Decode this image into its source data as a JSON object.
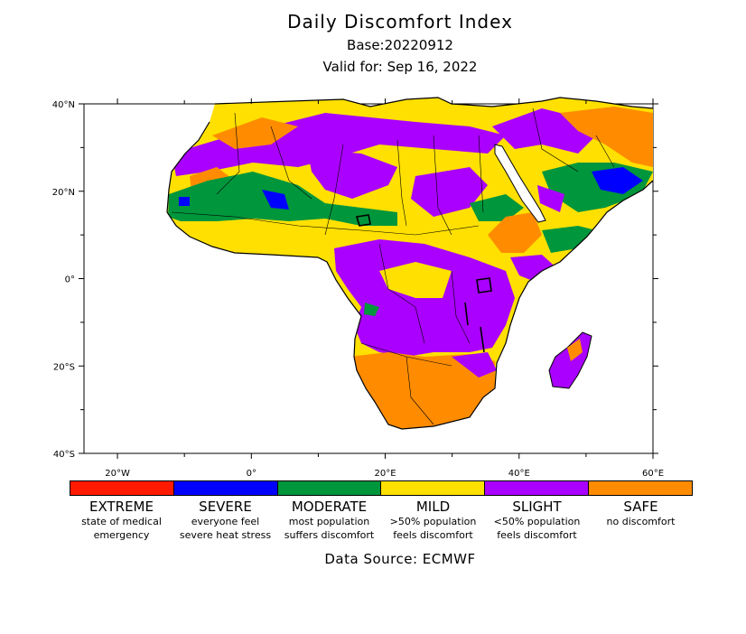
{
  "header": {
    "title": "Daily Discomfort Index",
    "base": "Base:20220912",
    "valid": "Valid for: Sep 16, 2022"
  },
  "map": {
    "lat_labels": [
      "40°N",
      "20°N",
      "0°",
      "20°S",
      "40°S"
    ],
    "lon_labels": [
      "20°W",
      "0°",
      "20°E",
      "40°E",
      "60°E"
    ],
    "lon_range": [
      -25,
      60
    ],
    "lat_range": [
      -40,
      40
    ],
    "colors": {
      "extreme": "#ff1a00",
      "severe": "#0000ff",
      "moderate": "#00963c",
      "mild": "#ffe000",
      "slight": "#aa00ff",
      "safe": "#ff8c00"
    }
  },
  "legend": [
    {
      "category": "EXTREME",
      "line1": "state of medical",
      "line2": "emergency",
      "color": "#ff1a00"
    },
    {
      "category": "SEVERE",
      "line1": "everyone feel",
      "line2": "severe heat stress",
      "color": "#0000ff"
    },
    {
      "category": "MODERATE",
      "line1": "most population",
      "line2": "suffers discomfort",
      "color": "#00963c"
    },
    {
      "category": "MILD",
      "line1": ">50% population",
      "line2": "feels discomfort",
      "color": "#ffe000"
    },
    {
      "category": "SLIGHT",
      "line1": "<50% population",
      "line2": "feels discomfort",
      "color": "#aa00ff"
    },
    {
      "category": "SAFE",
      "line1": "no discomfort",
      "line2": "",
      "color": "#ff8c00"
    }
  ],
  "footer": {
    "source": "Data Source: ECMWF"
  }
}
